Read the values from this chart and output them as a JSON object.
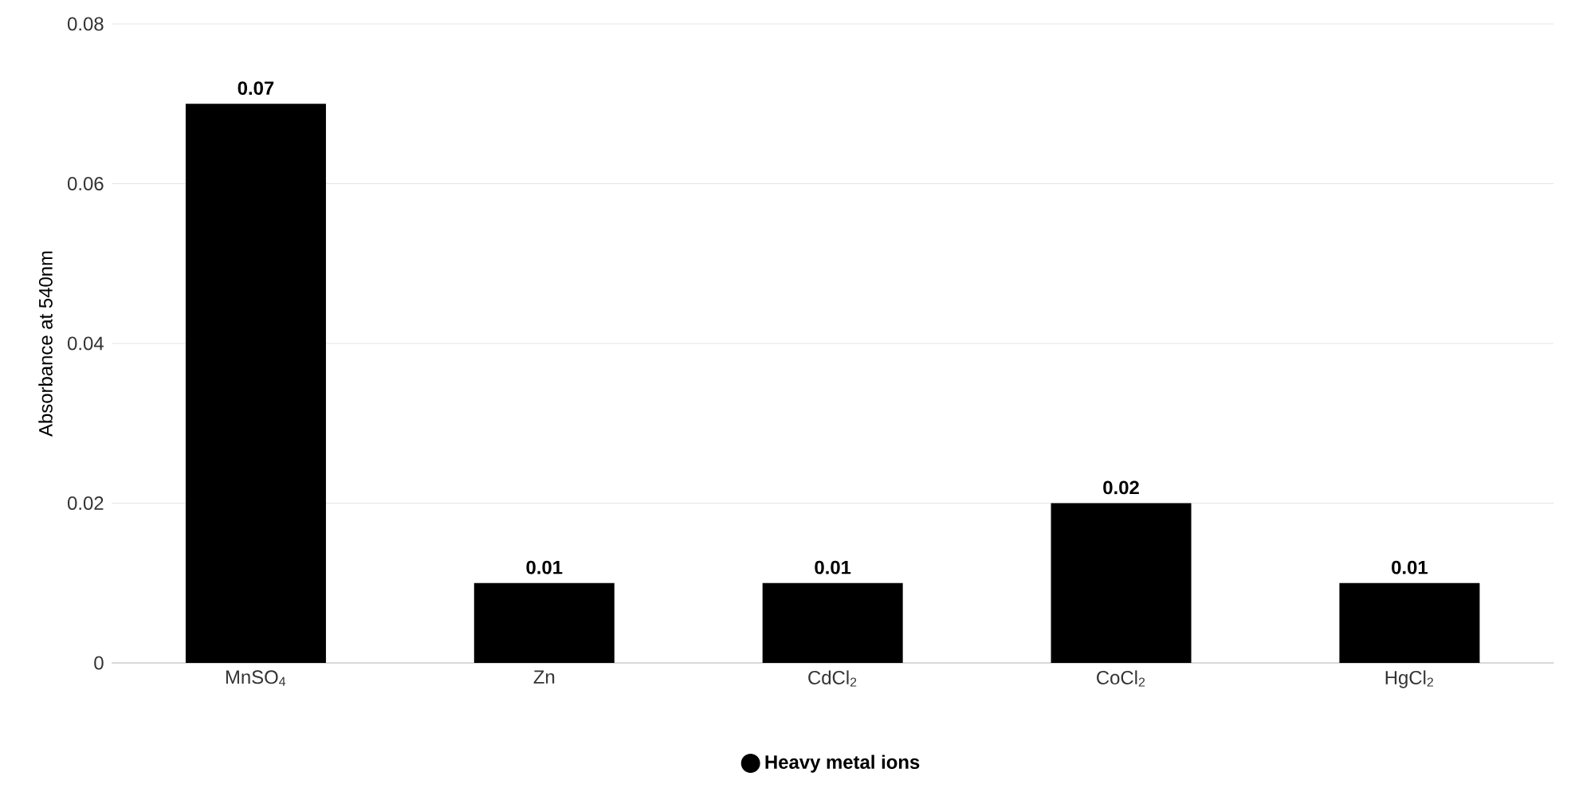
{
  "chart_data": {
    "type": "bar",
    "ylabel": "Absorbance at 540nm",
    "categories": [
      "MnSO$_{4}$",
      "Zn",
      "CdCl$_{2}$",
      "CoCl$_{2}$",
      "HgCl$_{2}$"
    ],
    "series": [
      {
        "name": "Heavy metal ions",
        "color": "#000000",
        "values": [
          0.07,
          0.01,
          0.01,
          0.02,
          0.01
        ]
      }
    ],
    "ylim": [
      0,
      0.08
    ],
    "yticks": [
      0,
      0.02,
      0.04,
      0.06,
      0.08
    ],
    "grid": "y",
    "legend": "bottom",
    "data_labels": true
  }
}
